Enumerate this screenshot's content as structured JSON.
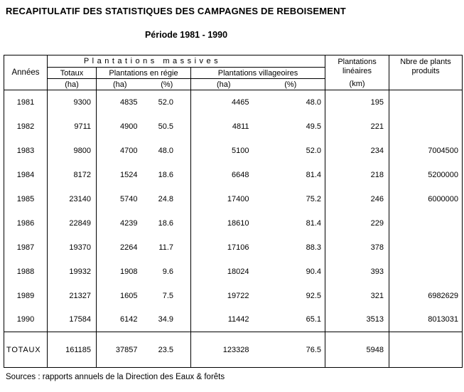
{
  "title": "RECAPITULATIF DES STATISTIQUES DES CAMPAGNES DE REBOISEMENT",
  "subtitle": "Période 1981 - 1990",
  "table": {
    "headers": {
      "annees": "Années",
      "massives_group": "Plantations massives",
      "totaux": "Totaux",
      "regie": "Plantations en régie",
      "villageoires": "Plantations villageoires",
      "lineaires_line1": "Plantations",
      "lineaires_line2": "linéaires",
      "plants_line1": "Nbre de plants",
      "plants_line2": "produits"
    },
    "units": {
      "totaux_ha": "(ha)",
      "regie_ha": "(ha)",
      "regie_pct": "(%)",
      "vill_ha": "(ha)",
      "vill_pct": "(%)",
      "lin_km": "(km)",
      "plants": ""
    },
    "rows": [
      [
        "1981",
        "9300",
        "4835",
        "52.0",
        "4465",
        "48.0",
        "195",
        ""
      ],
      [
        "1982",
        "9711",
        "4900",
        "50.5",
        "4811",
        "49.5",
        "221",
        ""
      ],
      [
        "1983",
        "9800",
        "4700",
        "48.0",
        "5100",
        "52.0",
        "234",
        "7004500"
      ],
      [
        "1984",
        "8172",
        "1524",
        "18.6",
        "6648",
        "81.4",
        "218",
        "5200000"
      ],
      [
        "1985",
        "23140",
        "5740",
        "24.8",
        "17400",
        "75.2",
        "246",
        "6000000"
      ],
      [
        "1986",
        "22849",
        "4239",
        "18.6",
        "18610",
        "81.4",
        "229",
        ""
      ],
      [
        "1987",
        "19370",
        "2264",
        "11.7",
        "17106",
        "88.3",
        "378",
        ""
      ],
      [
        "1988",
        "19932",
        "1908",
        "9.6",
        "18024",
        "90.4",
        "393",
        ""
      ],
      [
        "1989",
        "21327",
        "1605",
        "7.5",
        "19722",
        "92.5",
        "321",
        "6982629"
      ],
      [
        "1990",
        "17584",
        "6142",
        "34.9",
        "11442",
        "65.1",
        "3513",
        "8013031"
      ]
    ],
    "totals": [
      "TOTAUX",
      "161185",
      "37857",
      "23.5",
      "123328",
      "76.5",
      "5948",
      ""
    ],
    "totals_label": "TOTAUX"
  },
  "footer": "Sources : rapports annuels de la Direction des Eaux & forêts"
}
